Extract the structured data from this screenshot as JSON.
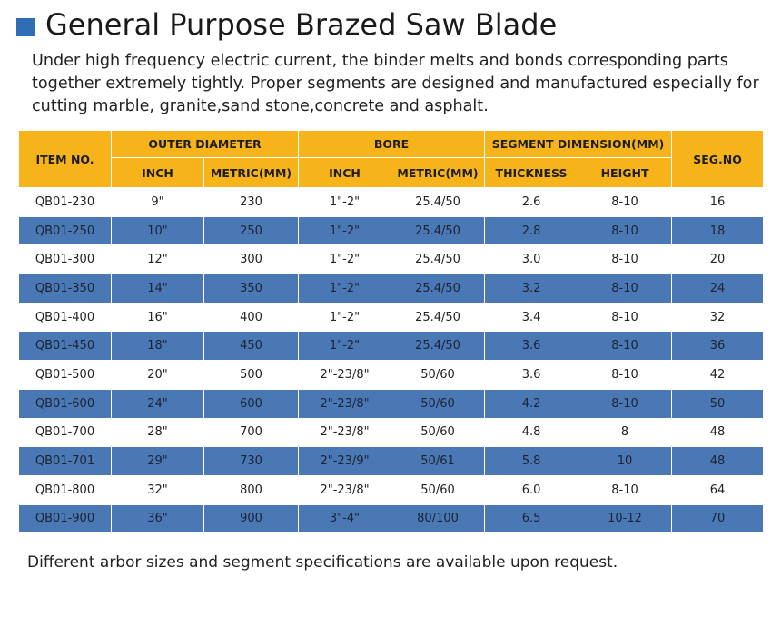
{
  "header": {
    "title": "General Purpose Brazed Saw Blade"
  },
  "description": "Under high frequency electric current, the binder melts and bonds corresponding parts together extremely tightly. Proper segments are designed and manufactured especially for cutting marble, granite,sand stone,concrete and asphalt.",
  "table": {
    "groups": [
      "ITEM NO.",
      "OUTER DIAMETER",
      "BORE",
      "SEGMENT DIMENSION(MM)",
      "SEG.NO"
    ],
    "subheaders": [
      "INCH",
      "METRIC(MM)",
      "INCH",
      "METRIC(MM)",
      "THICKNESS",
      "HEIGHT"
    ],
    "rows": [
      [
        "QB01-230",
        "9\"",
        "230",
        "1\"-2\"",
        "25.4/50",
        "2.6",
        "8-10",
        "16"
      ],
      [
        "QB01-250",
        "10\"",
        "250",
        "1\"-2\"",
        "25.4/50",
        "2.8",
        "8-10",
        "18"
      ],
      [
        "QB01-300",
        "12\"",
        "300",
        "1\"-2\"",
        "25.4/50",
        "3.0",
        "8-10",
        "20"
      ],
      [
        "QB01-350",
        "14\"",
        "350",
        "1\"-2\"",
        "25.4/50",
        "3.2",
        "8-10",
        "24"
      ],
      [
        "QB01-400",
        "16\"",
        "400",
        "1\"-2\"",
        "25.4/50",
        "3.4",
        "8-10",
        "32"
      ],
      [
        "QB01-450",
        "18\"",
        "450",
        "1\"-2\"",
        "25.4/50",
        "3.6",
        "8-10",
        "36"
      ],
      [
        "QB01-500",
        "20\"",
        "500",
        "2\"-23/8\"",
        "50/60",
        "3.6",
        "8-10",
        "42"
      ],
      [
        "QB01-600",
        "24\"",
        "600",
        "2\"-23/8\"",
        "50/60",
        "4.2",
        "8-10",
        "50"
      ],
      [
        "QB01-700",
        "28\"",
        "700",
        "2\"-23/8\"",
        "50/60",
        "4.8",
        "8",
        "48"
      ],
      [
        "QB01-701",
        "29\"",
        "730",
        "2\"-23/9\"",
        "50/61",
        "5.8",
        "10",
        "48"
      ],
      [
        "QB01-800",
        "32\"",
        "800",
        "2\"-23/8\"",
        "50/60",
        "6.0",
        "8-10",
        "64"
      ],
      [
        "QB01-900",
        "36\"",
        "900",
        "3\"-4\"",
        "80/100",
        "6.5",
        "10-12",
        "70"
      ]
    ]
  },
  "footer": "Different arbor sizes and segment specifications are available upon request."
}
